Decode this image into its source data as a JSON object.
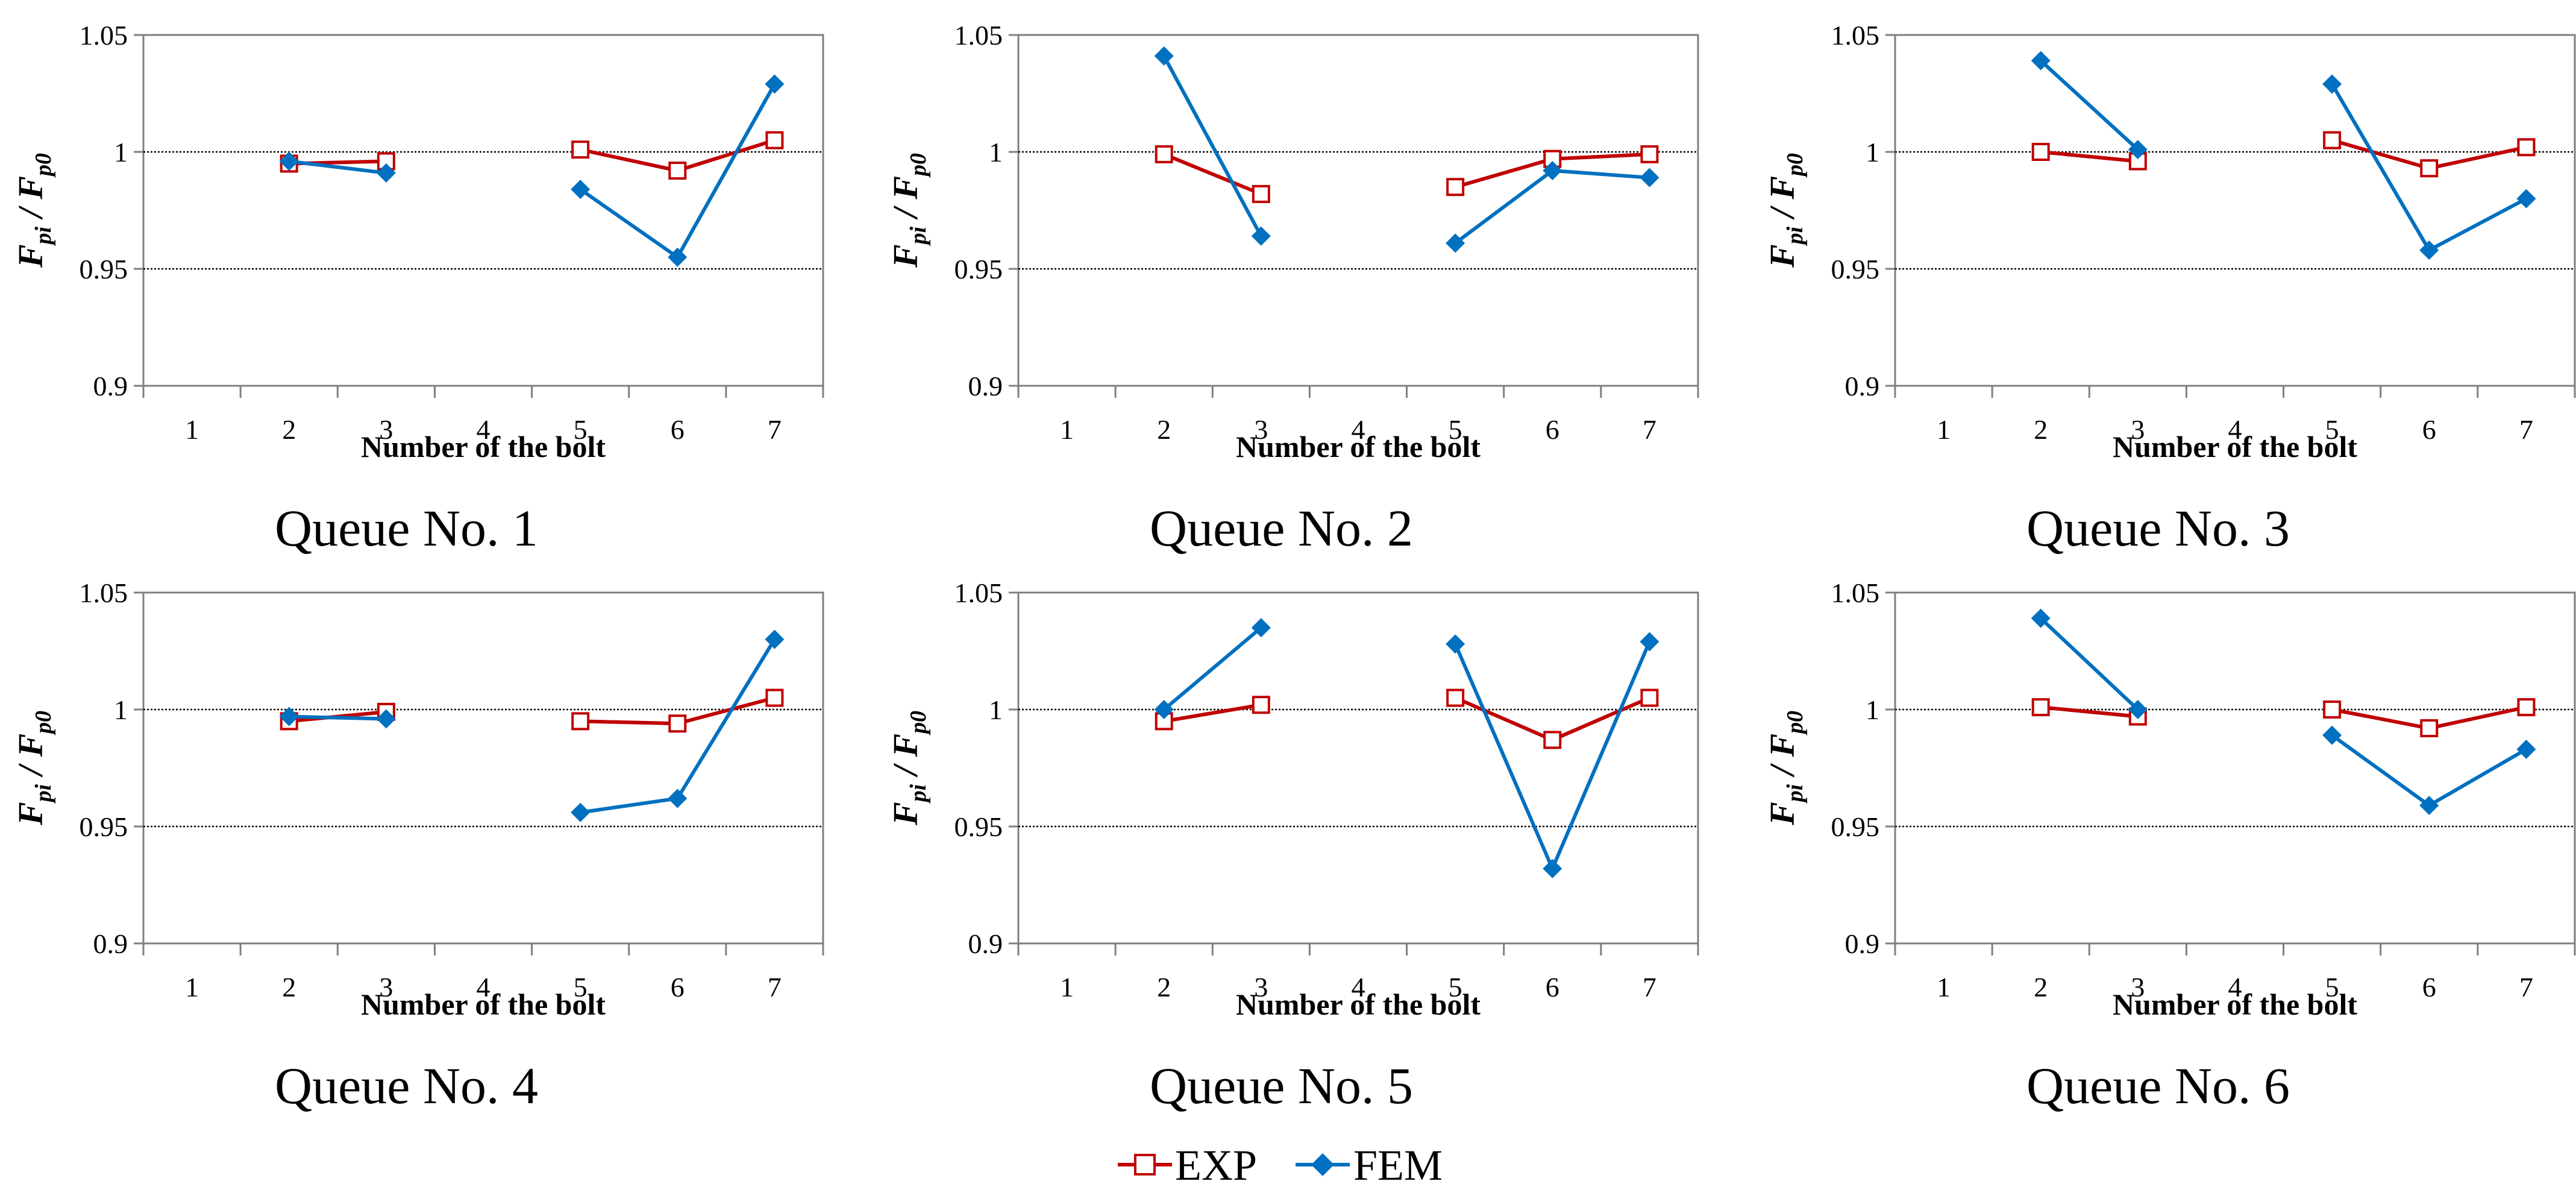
{
  "legend": {
    "exp_label": "EXP",
    "fem_label": "FEM"
  },
  "colors": {
    "exp": "#c00000",
    "fem": "#0070c0",
    "axis": "#7f7f7f",
    "grid": "#000000"
  },
  "chart_data": [
    {
      "type": "line",
      "caption": "Queue No. 1",
      "xlabel": "Number of the bolt",
      "ylabel_main": "F",
      "ylabel_sub1": "pi",
      "ylabel_sep": " / ",
      "ylabel_sub2": "p0",
      "categories": [
        "1",
        "2",
        "3",
        "4",
        "5",
        "6",
        "7"
      ],
      "ylim": [
        0.9,
        1.05
      ],
      "yticks": [
        "0.9",
        "0.95",
        "1",
        "1.05"
      ],
      "gridlines": [
        0.95,
        1.0
      ],
      "series": [
        {
          "name": "EXP",
          "segments": [
            [
              [
                2,
                0.995
              ],
              [
                3,
                0.996
              ]
            ],
            [
              [
                5,
                1.001
              ],
              [
                6,
                0.992
              ],
              [
                7,
                1.005
              ]
            ]
          ]
        },
        {
          "name": "FEM",
          "segments": [
            [
              [
                2,
                0.996
              ],
              [
                3,
                0.991
              ]
            ],
            [
              [
                5,
                0.984
              ],
              [
                6,
                0.955
              ],
              [
                7,
                1.029
              ]
            ]
          ]
        }
      ]
    },
    {
      "type": "line",
      "caption": "Queue No. 2",
      "xlabel": "Number of the bolt",
      "ylabel_main": "F",
      "ylabel_sub1": "pi",
      "ylabel_sep": " / ",
      "ylabel_sub2": "p0",
      "categories": [
        "1",
        "2",
        "3",
        "4",
        "5",
        "6",
        "7"
      ],
      "ylim": [
        0.9,
        1.05
      ],
      "yticks": [
        "0.9",
        "0.95",
        "1",
        "1.05"
      ],
      "gridlines": [
        0.95,
        1.0
      ],
      "series": [
        {
          "name": "EXP",
          "segments": [
            [
              [
                2,
                0.999
              ],
              [
                3,
                0.982
              ]
            ],
            [
              [
                5,
                0.985
              ],
              [
                6,
                0.997
              ],
              [
                7,
                0.999
              ]
            ]
          ]
        },
        {
          "name": "FEM",
          "segments": [
            [
              [
                2,
                1.041
              ],
              [
                3,
                0.964
              ]
            ],
            [
              [
                5,
                0.961
              ],
              [
                6,
                0.992
              ],
              [
                7,
                0.989
              ]
            ]
          ]
        }
      ]
    },
    {
      "type": "line",
      "caption": "Queue No. 3",
      "xlabel": "Number of the bolt",
      "ylabel_main": "F",
      "ylabel_sub1": "pi",
      "ylabel_sep": " / ",
      "ylabel_sub2": "p0",
      "categories": [
        "1",
        "2",
        "3",
        "4",
        "5",
        "6",
        "7"
      ],
      "ylim": [
        0.9,
        1.05
      ],
      "yticks": [
        "0.9",
        "0.95",
        "1",
        "1.05"
      ],
      "gridlines": [
        0.95,
        1.0
      ],
      "series": [
        {
          "name": "EXP",
          "segments": [
            [
              [
                2,
                1.0
              ],
              [
                3,
                0.996
              ]
            ],
            [
              [
                5,
                1.005
              ],
              [
                6,
                0.993
              ],
              [
                7,
                1.002
              ]
            ]
          ]
        },
        {
          "name": "FEM",
          "segments": [
            [
              [
                2,
                1.039
              ],
              [
                3,
                1.001
              ]
            ],
            [
              [
                5,
                1.029
              ],
              [
                6,
                0.958
              ],
              [
                7,
                0.98
              ]
            ]
          ]
        }
      ]
    },
    {
      "type": "line",
      "caption": "Queue No. 4",
      "xlabel": "Number of the bolt",
      "ylabel_main": "F",
      "ylabel_sub1": "pi",
      "ylabel_sep": " / ",
      "ylabel_sub2": "p0",
      "categories": [
        "1",
        "2",
        "3",
        "4",
        "5",
        "6",
        "7"
      ],
      "ylim": [
        0.9,
        1.05
      ],
      "yticks": [
        "0.9",
        "0.95",
        "1",
        "1.05"
      ],
      "gridlines": [
        0.95,
        1.0
      ],
      "series": [
        {
          "name": "EXP",
          "segments": [
            [
              [
                2,
                0.995
              ],
              [
                3,
                0.999
              ]
            ],
            [
              [
                5,
                0.995
              ],
              [
                6,
                0.994
              ],
              [
                7,
                1.005
              ]
            ]
          ]
        },
        {
          "name": "FEM",
          "segments": [
            [
              [
                2,
                0.997
              ],
              [
                3,
                0.996
              ]
            ],
            [
              [
                5,
                0.956
              ],
              [
                6,
                0.962
              ],
              [
                7,
                1.03
              ]
            ]
          ]
        }
      ]
    },
    {
      "type": "line",
      "caption": "Queue No. 5",
      "xlabel": "Number of the bolt",
      "ylabel_main": "F",
      "ylabel_sub1": "pi",
      "ylabel_sep": " / ",
      "ylabel_sub2": "p0",
      "categories": [
        "1",
        "2",
        "3",
        "4",
        "5",
        "6",
        "7"
      ],
      "ylim": [
        0.9,
        1.05
      ],
      "yticks": [
        "0.9",
        "0.95",
        "1",
        "1.05"
      ],
      "gridlines": [
        0.95,
        1.0
      ],
      "series": [
        {
          "name": "EXP",
          "segments": [
            [
              [
                2,
                0.995
              ],
              [
                3,
                1.002
              ]
            ],
            [
              [
                5,
                1.005
              ],
              [
                6,
                0.987
              ],
              [
                7,
                1.005
              ]
            ]
          ]
        },
        {
          "name": "FEM",
          "segments": [
            [
              [
                2,
                1.0
              ],
              [
                3,
                1.035
              ]
            ],
            [
              [
                5,
                1.028
              ],
              [
                6,
                0.932
              ],
              [
                7,
                1.029
              ]
            ]
          ]
        }
      ]
    },
    {
      "type": "line",
      "caption": "Queue No. 6",
      "xlabel": "Number of the bolt",
      "ylabel_main": "F",
      "ylabel_sub1": "pi",
      "ylabel_sep": " / ",
      "ylabel_sub2": "p0",
      "categories": [
        "1",
        "2",
        "3",
        "4",
        "5",
        "6",
        "7"
      ],
      "ylim": [
        0.9,
        1.05
      ],
      "yticks": [
        "0.9",
        "0.95",
        "1",
        "1.05"
      ],
      "gridlines": [
        0.95,
        1.0
      ],
      "series": [
        {
          "name": "EXP",
          "segments": [
            [
              [
                2,
                1.001
              ],
              [
                3,
                0.997
              ]
            ],
            [
              [
                5,
                1.0
              ],
              [
                6,
                0.992
              ],
              [
                7,
                1.001
              ]
            ]
          ]
        },
        {
          "name": "FEM",
          "segments": [
            [
              [
                2,
                1.039
              ],
              [
                3,
                1.0
              ]
            ],
            [
              [
                5,
                0.989
              ],
              [
                6,
                0.959
              ],
              [
                7,
                0.983
              ]
            ]
          ]
        }
      ]
    }
  ]
}
